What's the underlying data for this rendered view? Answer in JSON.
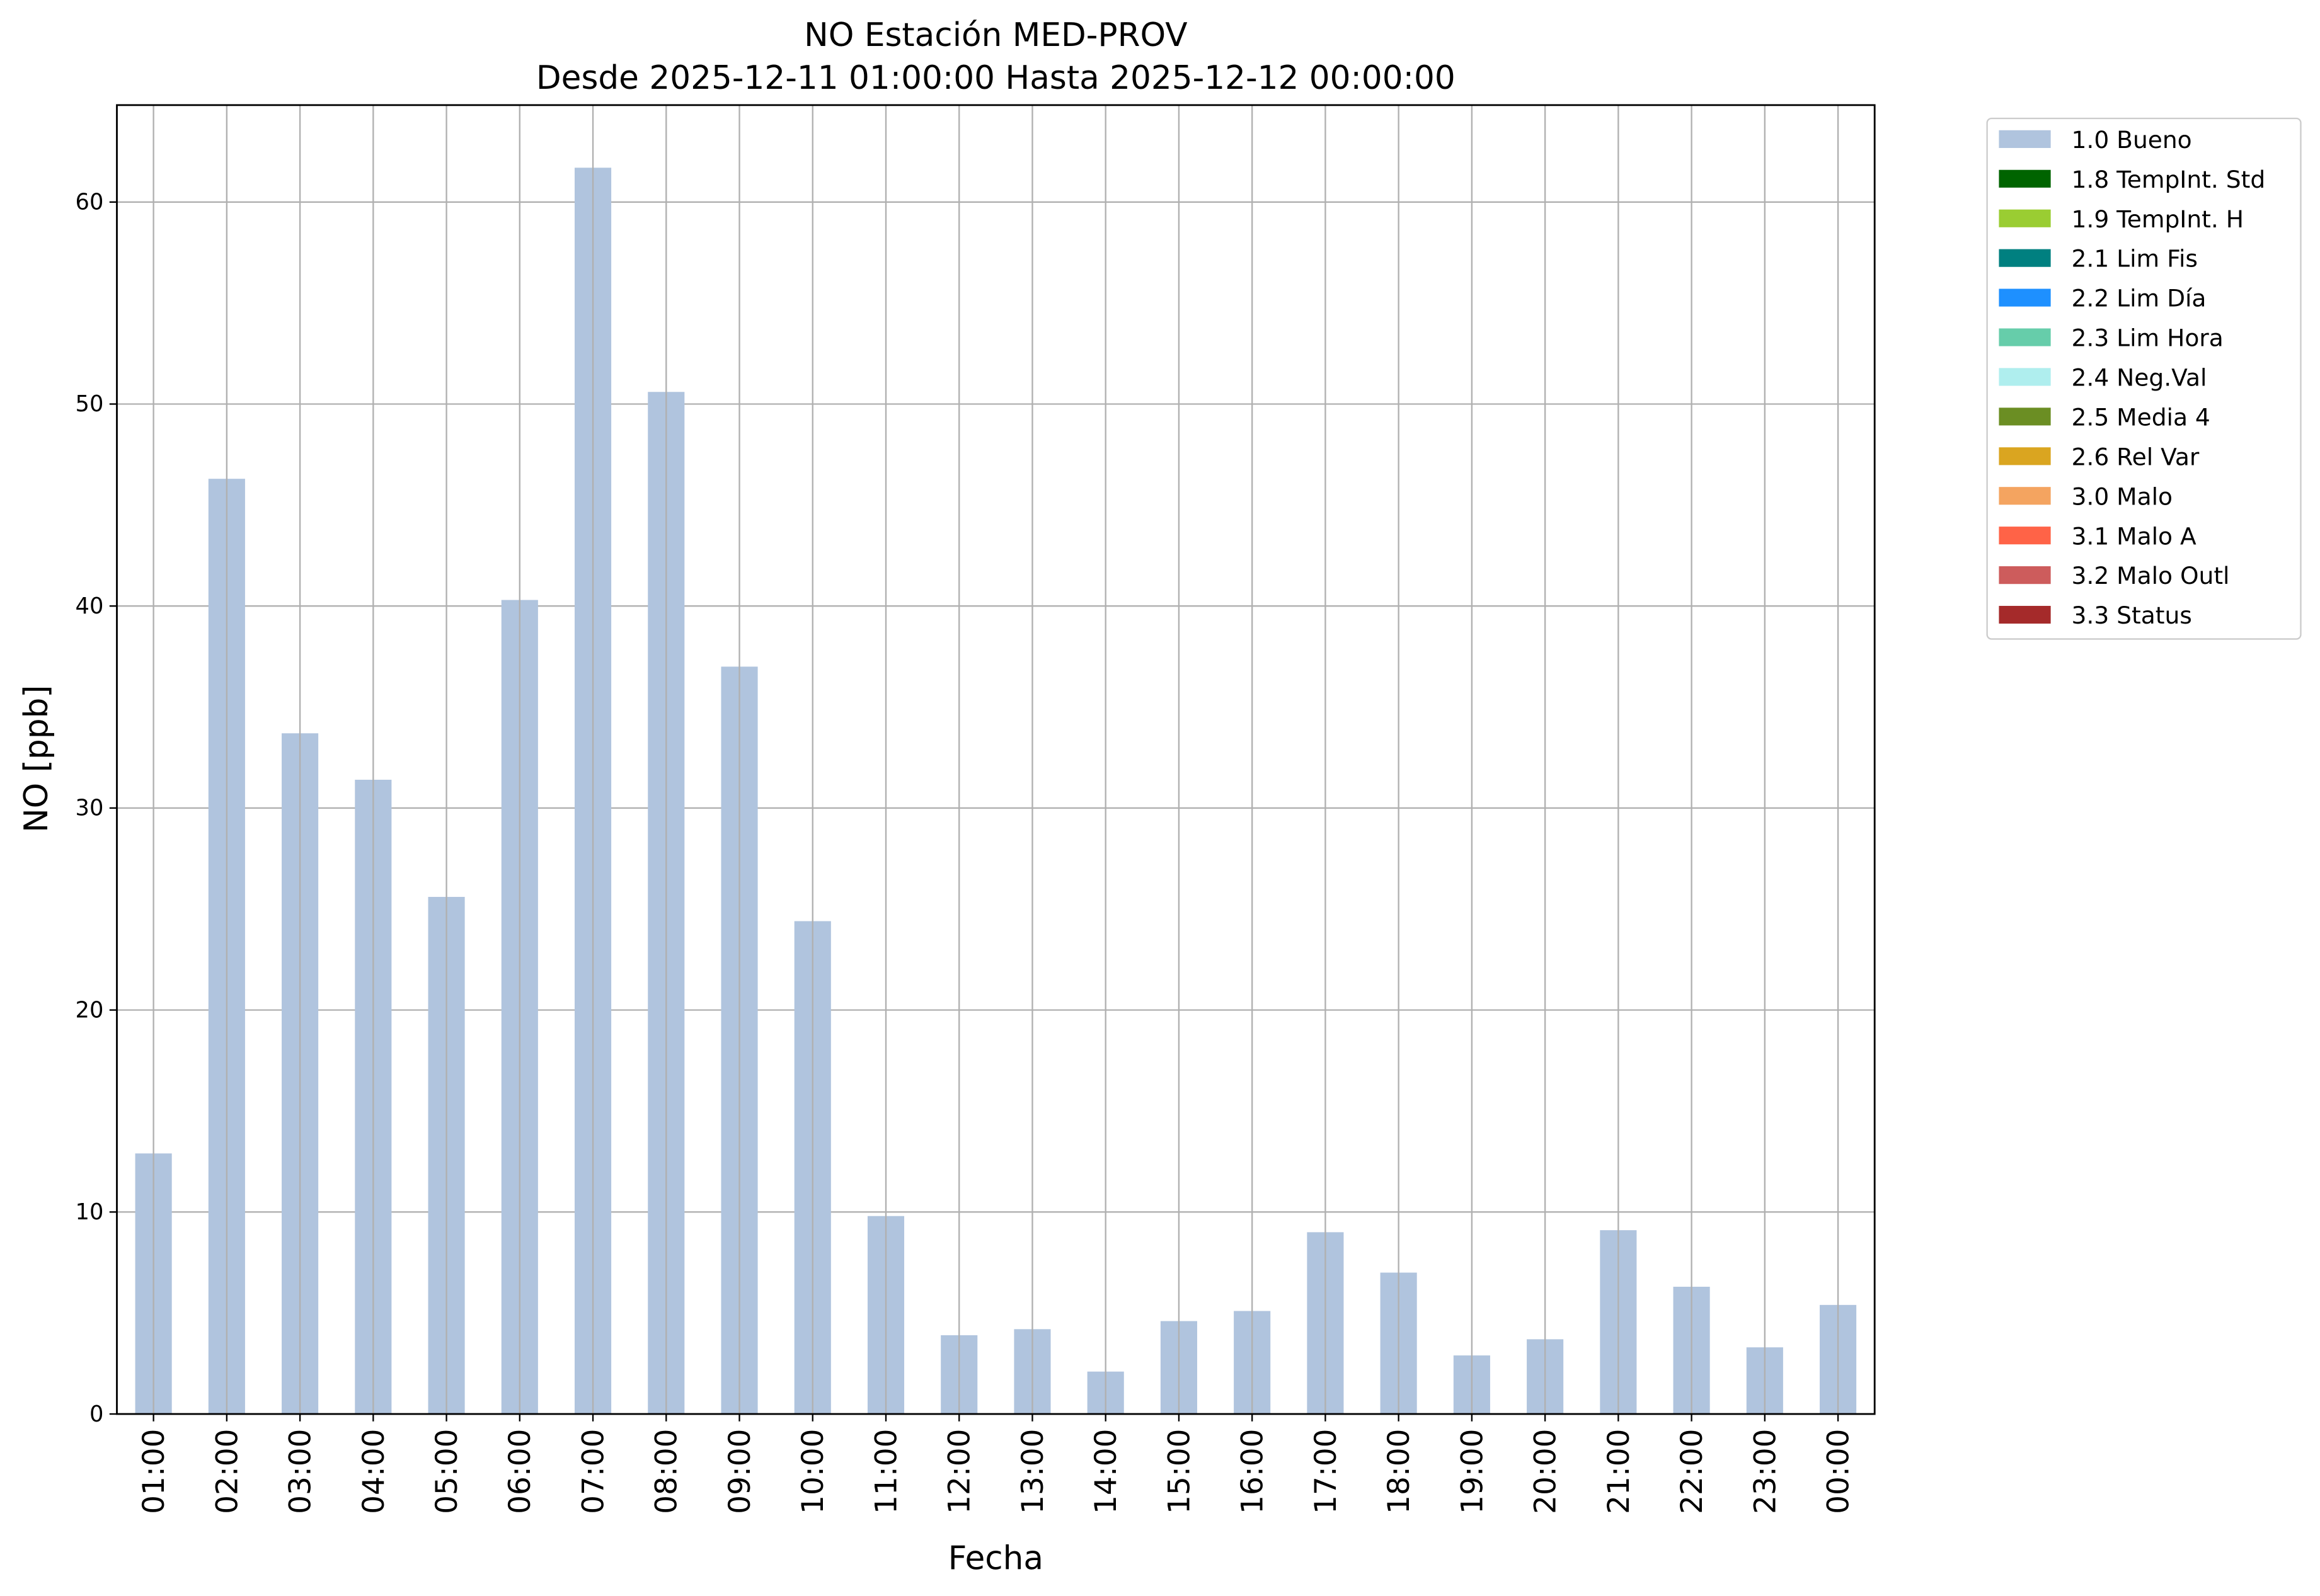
{
  "chart_data": {
    "type": "bar",
    "stacked": true,
    "title": "NO Estación MED-PROV",
    "subtitle": "Desde 2025-12-11 01:00:00 Hasta 2025-12-12 00:00:00",
    "x_label": "Fecha",
    "y_label": "NO [ppb]",
    "categories": [
      "01:00",
      "02:00",
      "03:00",
      "04:00",
      "05:00",
      "06:00",
      "07:00",
      "08:00",
      "09:00",
      "10:00",
      "11:00",
      "12:00",
      "13:00",
      "14:00",
      "15:00",
      "16:00",
      "17:00",
      "18:00",
      "19:00",
      "20:00",
      "21:00",
      "22:00",
      "23:00",
      "00:00"
    ],
    "series": [
      {
        "name": "1.0 Bueno",
        "color": "#b0c4de",
        "values": [
          12.9,
          46.3,
          33.7,
          31.4,
          25.6,
          40.3,
          61.7,
          50.6,
          37.0,
          24.4,
          9.8,
          3.9,
          4.2,
          2.1,
          4.6,
          5.1,
          9.0,
          7.0,
          2.9,
          3.7,
          9.1,
          6.3,
          3.3,
          5.4
        ]
      },
      {
        "name": "1.8 TempInt. Std",
        "color": "#006400",
        "values": [
          null,
          null,
          null,
          null,
          null,
          null,
          null,
          null,
          null,
          null,
          null,
          null,
          null,
          null,
          null,
          null,
          null,
          null,
          null,
          null,
          null,
          null,
          null,
          null
        ]
      },
      {
        "name": "1.9 TempInt. H",
        "color": "#9acd32",
        "values": [
          null,
          null,
          null,
          null,
          null,
          null,
          null,
          null,
          null,
          null,
          null,
          null,
          null,
          null,
          null,
          null,
          null,
          null,
          null,
          null,
          null,
          null,
          null,
          null
        ]
      },
      {
        "name": "2.1 Lim Fis",
        "color": "#008080",
        "values": [
          null,
          null,
          null,
          null,
          null,
          null,
          null,
          null,
          null,
          null,
          null,
          null,
          null,
          null,
          null,
          null,
          null,
          null,
          null,
          null,
          null,
          null,
          null,
          null
        ]
      },
      {
        "name": "2.2 Lim Día",
        "color": "#1e90ff",
        "values": [
          null,
          null,
          null,
          null,
          null,
          null,
          null,
          null,
          null,
          null,
          null,
          null,
          null,
          null,
          null,
          null,
          null,
          null,
          null,
          null,
          null,
          null,
          null,
          null
        ]
      },
      {
        "name": "2.3 Lim Hora",
        "color": "#66cdaa",
        "values": [
          null,
          null,
          null,
          null,
          null,
          null,
          null,
          null,
          null,
          null,
          null,
          null,
          null,
          null,
          null,
          null,
          null,
          null,
          null,
          null,
          null,
          null,
          null,
          null
        ]
      },
      {
        "name": "2.4 Neg.Val",
        "color": "#afeeee",
        "values": [
          null,
          null,
          null,
          null,
          null,
          null,
          null,
          null,
          null,
          null,
          null,
          null,
          null,
          null,
          null,
          null,
          null,
          null,
          null,
          null,
          null,
          null,
          null,
          null
        ]
      },
      {
        "name": "2.5 Media 4",
        "color": "#6b8e23",
        "values": [
          null,
          null,
          null,
          null,
          null,
          null,
          null,
          null,
          null,
          null,
          null,
          null,
          null,
          null,
          null,
          null,
          null,
          null,
          null,
          null,
          null,
          null,
          null,
          null
        ]
      },
      {
        "name": "2.6 Rel Var",
        "color": "#daa520",
        "values": [
          null,
          null,
          null,
          null,
          null,
          null,
          null,
          null,
          null,
          null,
          null,
          null,
          null,
          null,
          null,
          null,
          null,
          null,
          null,
          null,
          null,
          null,
          null,
          null
        ]
      },
      {
        "name": "3.0 Malo",
        "color": "#f4a460",
        "values": [
          null,
          null,
          null,
          null,
          null,
          null,
          null,
          null,
          null,
          null,
          null,
          null,
          null,
          null,
          null,
          null,
          null,
          null,
          null,
          null,
          null,
          null,
          null,
          null
        ]
      },
      {
        "name": "3.1 Malo A",
        "color": "#ff6347",
        "values": [
          null,
          null,
          null,
          null,
          null,
          null,
          null,
          null,
          null,
          null,
          null,
          null,
          null,
          null,
          null,
          null,
          null,
          null,
          null,
          null,
          null,
          null,
          null,
          null
        ]
      },
      {
        "name": "3.2 Malo Outl",
        "color": "#cd5c5c",
        "values": [
          null,
          null,
          null,
          null,
          null,
          null,
          null,
          null,
          null,
          null,
          null,
          null,
          null,
          null,
          null,
          null,
          null,
          null,
          null,
          null,
          null,
          null,
          null,
          null
        ]
      },
      {
        "name": "3.3 Status",
        "color": "#a52a2a",
        "values": [
          null,
          null,
          null,
          null,
          null,
          null,
          null,
          null,
          null,
          null,
          null,
          null,
          null,
          null,
          null,
          null,
          null,
          null,
          null,
          null,
          null,
          null,
          null,
          null
        ]
      }
    ],
    "ylim": [
      0,
      64.8
    ],
    "yticks": [
      0,
      10,
      20,
      30,
      40,
      50,
      60
    ],
    "grid": true,
    "legend": "outside-right"
  }
}
